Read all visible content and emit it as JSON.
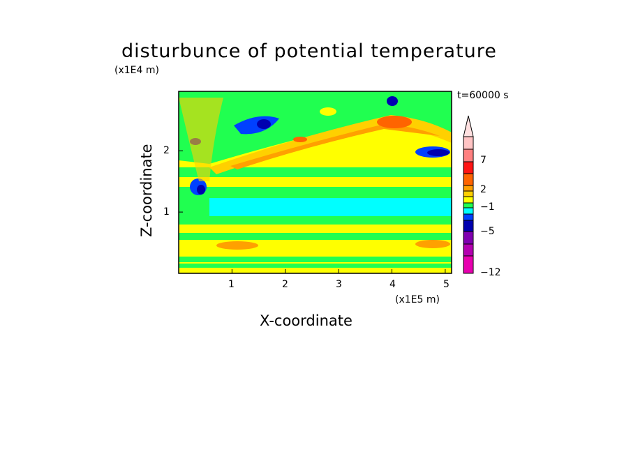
{
  "chart_data": {
    "type": "heatmap",
    "title": "disturbunce of potential temperature",
    "xlabel": "X-coordinate",
    "ylabel": "Z-coordinate",
    "x_unit": "(x1E5 m)",
    "y_unit": "(x1E4 m)",
    "time_label": "t=60000 s",
    "xlim": [
      0,
      5.12
    ],
    "ylim": [
      0,
      2.97
    ],
    "x_ticks": [
      "1",
      "2",
      "3",
      "4",
      "5"
    ],
    "y_ticks": [
      "1",
      "2"
    ],
    "grid": false,
    "colorbar": {
      "labels": [
        "7",
        "2",
        "−1",
        "−5",
        "−12"
      ],
      "colors_top_to_bottom": [
        "#ffc4c4",
        "#ff8080",
        "#ff1414",
        "#ff6400",
        "#ffa000",
        "#ffd000",
        "#ffff00",
        "#20ff50",
        "#00ffff",
        "#0040ff",
        "#0000b0",
        "#8000b0",
        "#b400b0",
        "#e800b0"
      ],
      "extend_top_color": "#ffe0e0"
    }
  }
}
